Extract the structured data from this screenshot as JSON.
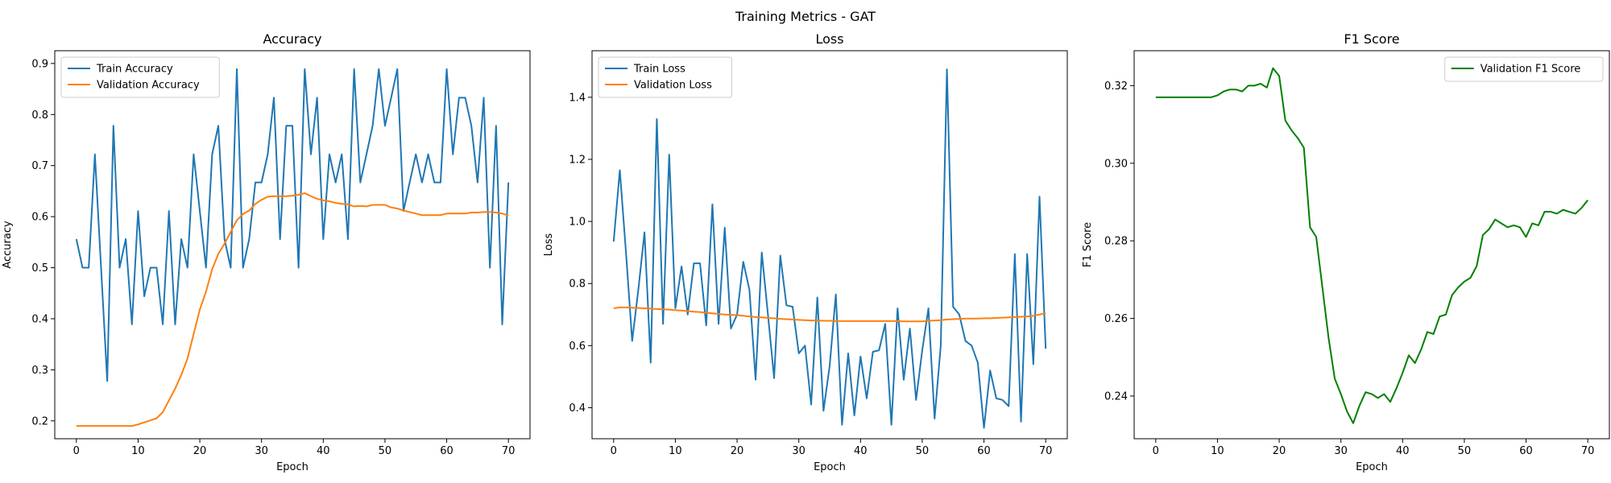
{
  "figure": {
    "suptitle": "Training Metrics - GAT"
  },
  "chart_data": [
    {
      "type": "line",
      "title": "Accuracy",
      "xlabel": "Epoch",
      "ylabel": "Accuracy",
      "xlim": [
        -3.5,
        73.5
      ],
      "ylim": [
        0.165,
        0.925
      ],
      "xticks": [
        0,
        10,
        20,
        30,
        40,
        50,
        60,
        70
      ],
      "yticks": [
        0.2,
        0.3,
        0.4,
        0.5,
        0.6,
        0.7,
        0.8,
        0.9
      ],
      "ytick_decimals": 1,
      "legend_position": "upper-left",
      "grid": false,
      "x": [
        0,
        1,
        2,
        3,
        4,
        5,
        6,
        7,
        8,
        9,
        10,
        11,
        12,
        13,
        14,
        15,
        16,
        17,
        18,
        19,
        20,
        21,
        22,
        23,
        24,
        25,
        26,
        27,
        28,
        29,
        30,
        31,
        32,
        33,
        34,
        35,
        36,
        37,
        38,
        39,
        40,
        41,
        42,
        43,
        44,
        45,
        46,
        47,
        48,
        49,
        50,
        51,
        52,
        53,
        54,
        55,
        56,
        57,
        58,
        59,
        60,
        61,
        62,
        63,
        64,
        65,
        66,
        67,
        68,
        69,
        70
      ],
      "series": [
        {
          "name": "Train Accuracy",
          "color": "#1f77b4",
          "values": [
            0.556,
            0.5,
            0.5,
            0.722,
            0.5,
            0.278,
            0.778,
            0.5,
            0.556,
            0.389,
            0.611,
            0.444,
            0.5,
            0.5,
            0.389,
            0.611,
            0.389,
            0.556,
            0.5,
            0.722,
            0.611,
            0.5,
            0.722,
            0.778,
            0.556,
            0.5,
            0.889,
            0.5,
            0.556,
            0.667,
            0.667,
            0.722,
            0.833,
            0.556,
            0.778,
            0.778,
            0.5,
            0.889,
            0.722,
            0.833,
            0.556,
            0.722,
            0.667,
            0.722,
            0.556,
            0.889,
            0.667,
            0.722,
            0.778,
            0.889,
            0.778,
            0.833,
            0.889,
            0.611,
            0.667,
            0.722,
            0.667,
            0.722,
            0.667,
            0.667,
            0.889,
            0.722,
            0.833,
            0.833,
            0.778,
            0.667,
            0.833,
            0.5,
            0.778,
            0.389,
            0.667
          ]
        },
        {
          "name": "Validation Accuracy",
          "color": "#ff7f0e",
          "values": [
            0.19,
            0.19,
            0.19,
            0.19,
            0.19,
            0.19,
            0.19,
            0.19,
            0.19,
            0.19,
            0.193,
            0.197,
            0.201,
            0.205,
            0.217,
            0.24,
            0.263,
            0.29,
            0.322,
            0.37,
            0.418,
            0.453,
            0.497,
            0.527,
            0.547,
            0.57,
            0.593,
            0.605,
            0.612,
            0.625,
            0.633,
            0.639,
            0.64,
            0.64,
            0.64,
            0.641,
            0.643,
            0.646,
            0.64,
            0.635,
            0.632,
            0.63,
            0.627,
            0.625,
            0.624,
            0.62,
            0.621,
            0.62,
            0.623,
            0.623,
            0.623,
            0.618,
            0.616,
            0.612,
            0.609,
            0.606,
            0.603,
            0.603,
            0.603,
            0.603,
            0.606,
            0.606,
            0.606,
            0.606,
            0.608,
            0.608,
            0.609,
            0.609,
            0.608,
            0.606,
            0.602
          ]
        }
      ]
    },
    {
      "type": "line",
      "title": "Loss",
      "xlabel": "Epoch",
      "ylabel": "Loss",
      "xlim": [
        -3.5,
        73.5
      ],
      "ylim": [
        0.3,
        1.55
      ],
      "xticks": [
        0,
        10,
        20,
        30,
        40,
        50,
        60,
        70
      ],
      "yticks": [
        0.4,
        0.6,
        0.8,
        1.0,
        1.2,
        1.4
      ],
      "ytick_decimals": 1,
      "legend_position": "upper-left",
      "grid": false,
      "x": [
        0,
        1,
        2,
        3,
        4,
        5,
        6,
        7,
        8,
        9,
        10,
        11,
        12,
        13,
        14,
        15,
        16,
        17,
        18,
        19,
        20,
        21,
        22,
        23,
        24,
        25,
        26,
        27,
        28,
        29,
        30,
        31,
        32,
        33,
        34,
        35,
        36,
        37,
        38,
        39,
        40,
        41,
        42,
        43,
        44,
        45,
        46,
        47,
        48,
        49,
        50,
        51,
        52,
        53,
        54,
        55,
        56,
        57,
        58,
        59,
        60,
        61,
        62,
        63,
        64,
        65,
        66,
        67,
        68,
        69,
        70
      ],
      "series": [
        {
          "name": "Train Loss",
          "color": "#1f77b4",
          "values": [
            0.935,
            1.165,
            0.9,
            0.615,
            0.78,
            0.965,
            0.545,
            1.33,
            0.67,
            1.215,
            0.72,
            0.855,
            0.7,
            0.865,
            0.865,
            0.665,
            1.055,
            0.67,
            0.98,
            0.655,
            0.7,
            0.87,
            0.78,
            0.49,
            0.9,
            0.7,
            0.495,
            0.89,
            0.73,
            0.725,
            0.575,
            0.6,
            0.41,
            0.755,
            0.39,
            0.535,
            0.765,
            0.345,
            0.575,
            0.375,
            0.565,
            0.43,
            0.58,
            0.585,
            0.67,
            0.345,
            0.72,
            0.49,
            0.655,
            0.425,
            0.585,
            0.72,
            0.365,
            0.6,
            1.49,
            0.725,
            0.7,
            0.615,
            0.6,
            0.545,
            0.335,
            0.52,
            0.43,
            0.425,
            0.405,
            0.895,
            0.355,
            0.895,
            0.54,
            1.08,
            0.59
          ]
        },
        {
          "name": "Validation Loss",
          "color": "#ff7f0e",
          "values": [
            0.72,
            0.723,
            0.723,
            0.722,
            0.721,
            0.72,
            0.719,
            0.718,
            0.717,
            0.716,
            0.714,
            0.713,
            0.711,
            0.709,
            0.708,
            0.706,
            0.704,
            0.702,
            0.7,
            0.699,
            0.698,
            0.696,
            0.694,
            0.692,
            0.691,
            0.689,
            0.688,
            0.686,
            0.685,
            0.684,
            0.683,
            0.682,
            0.681,
            0.681,
            0.68,
            0.68,
            0.679,
            0.679,
            0.679,
            0.679,
            0.679,
            0.679,
            0.679,
            0.679,
            0.679,
            0.679,
            0.679,
            0.678,
            0.678,
            0.678,
            0.678,
            0.68,
            0.681,
            0.682,
            0.684,
            0.685,
            0.686,
            0.687,
            0.687,
            0.687,
            0.688,
            0.688,
            0.689,
            0.69,
            0.691,
            0.692,
            0.693,
            0.694,
            0.696,
            0.7,
            0.705
          ]
        }
      ]
    },
    {
      "type": "line",
      "title": "F1 Score",
      "xlabel": "Epoch",
      "ylabel": "F1 Score",
      "xlim": [
        -3.5,
        73.5
      ],
      "ylim": [
        0.229,
        0.329
      ],
      "xticks": [
        0,
        10,
        20,
        30,
        40,
        50,
        60,
        70
      ],
      "yticks": [
        0.24,
        0.26,
        0.28,
        0.3,
        0.32
      ],
      "ytick_decimals": 2,
      "legend_position": "upper-right",
      "grid": false,
      "x": [
        0,
        1,
        2,
        3,
        4,
        5,
        6,
        7,
        8,
        9,
        10,
        11,
        12,
        13,
        14,
        15,
        16,
        17,
        18,
        19,
        20,
        21,
        22,
        23,
        24,
        25,
        26,
        27,
        28,
        29,
        30,
        31,
        32,
        33,
        34,
        35,
        36,
        37,
        38,
        39,
        40,
        41,
        42,
        43,
        44,
        45,
        46,
        47,
        48,
        49,
        50,
        51,
        52,
        53,
        54,
        55,
        56,
        57,
        58,
        59,
        60,
        61,
        62,
        63,
        64,
        65,
        66,
        67,
        68,
        69,
        70
      ],
      "series": [
        {
          "name": "Validation F1 Score",
          "color": "#008000",
          "values": [
            0.317,
            0.317,
            0.317,
            0.317,
            0.317,
            0.317,
            0.317,
            0.317,
            0.317,
            0.317,
            0.3175,
            0.3185,
            0.319,
            0.319,
            0.3185,
            0.32,
            0.32,
            0.3205,
            0.3195,
            0.3245,
            0.3225,
            0.311,
            0.3085,
            0.3065,
            0.304,
            0.2835,
            0.281,
            0.268,
            0.255,
            0.2445,
            0.2405,
            0.236,
            0.233,
            0.2375,
            0.241,
            0.2405,
            0.2395,
            0.2405,
            0.2385,
            0.242,
            0.246,
            0.2505,
            0.2485,
            0.252,
            0.2565,
            0.256,
            0.2605,
            0.261,
            0.266,
            0.268,
            0.2695,
            0.2705,
            0.2735,
            0.2815,
            0.283,
            0.2855,
            0.2845,
            0.2835,
            0.284,
            0.2835,
            0.281,
            0.2845,
            0.284,
            0.2875,
            0.2875,
            0.287,
            0.288,
            0.2875,
            0.287,
            0.2885,
            0.2905
          ]
        }
      ]
    }
  ]
}
